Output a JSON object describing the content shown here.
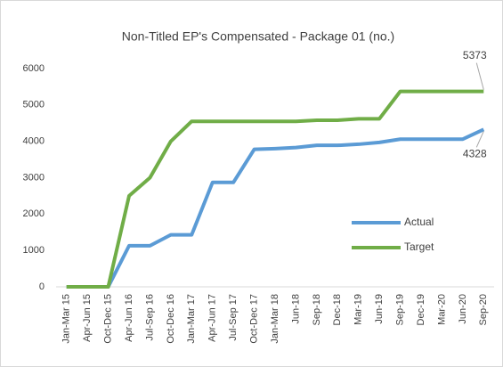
{
  "chart_data": {
    "type": "line",
    "title": "Non-Titled EP's Compensated - Package 01 (no.)",
    "categories": [
      "Jan-Mar 15",
      "Apr-Jun 15",
      "Oct-Dec 15",
      "Apr-Jun 16",
      "Jul-Sep 16",
      "Oct-Dec 16",
      "Jan-Mar 17",
      "Apr-Jun 17",
      "Jul-Sep 17",
      "Oct-Dec 17",
      "Jan-Mar 18",
      "Jun-18",
      "Sep-18",
      "Dec-18",
      "Mar-19",
      "Jun-19",
      "Sep-19",
      "Dec-19",
      "Mar-20",
      "Jun-20",
      "Sep-20"
    ],
    "series": [
      {
        "name": "Actual",
        "color": "#5b9bd5",
        "label_last": true,
        "values": [
          0,
          0,
          0,
          1130,
          1130,
          1430,
          1430,
          2870,
          2870,
          3780,
          3800,
          3830,
          3890,
          3890,
          3920,
          3970,
          4060,
          4060,
          4060,
          4060,
          4328
        ]
      },
      {
        "name": "Target",
        "color": "#70ad47",
        "label_last": true,
        "values": [
          0,
          0,
          0,
          2500,
          3000,
          4000,
          4550,
          4550,
          4550,
          4550,
          4550,
          4550,
          4580,
          4580,
          4620,
          4620,
          5373,
          5373,
          5373,
          5373,
          5373
        ]
      }
    ],
    "ylim": [
      0,
      6000
    ],
    "yticks": [
      0,
      1000,
      2000,
      3000,
      4000,
      5000,
      6000
    ],
    "grid": false,
    "legend": "inside-right"
  }
}
